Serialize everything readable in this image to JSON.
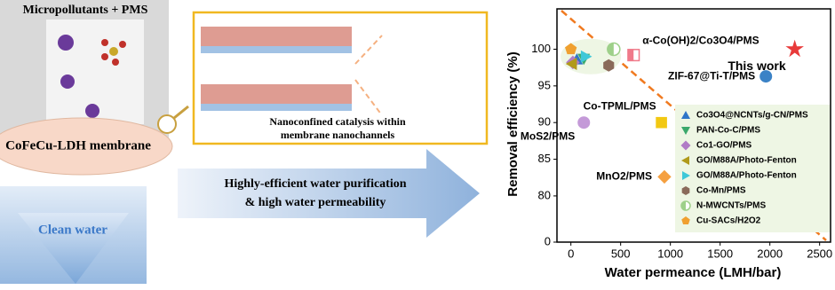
{
  "diagram": {
    "left_top": "Micropollutants + PMS",
    "membrane": "CoFeCu-LDH membrane",
    "clean_water": "Clean water",
    "middle_caption_1": "Nanoconfined catalysis within",
    "middle_caption_2": "membrane nanochannels",
    "arrow_text_1": "Highly-efficient water purification",
    "arrow_text_2": "& high water permeability"
  },
  "chart_data": {
    "type": "scatter",
    "x_label": "Water permeance (LMH/bar)",
    "y_label": "Removal efficiency (%)",
    "xlim": [
      -140,
      2610
    ],
    "xticks": [
      0,
      500,
      1000,
      1500,
      2000,
      2500
    ],
    "ylim": [
      0,
      105.5
    ],
    "y_axis_break": [
      0,
      76
    ],
    "yticks": [
      0,
      80,
      85,
      90,
      95,
      100
    ],
    "legend": "lower right",
    "legend_background": "#eef6e4",
    "series": [
      {
        "name": "Co3O4@NCNTs/g-CN/PMS",
        "color": "#2e75c8",
        "marker": "triangle-up",
        "x": [
          60
        ],
        "values": [
          98.6
        ]
      },
      {
        "name": "PAN-Co-C/PMS",
        "color": "#3aa86b",
        "marker": "triangle-down",
        "x": [
          130
        ],
        "values": [
          98.7
        ]
      },
      {
        "name": "Co1-GO/PMS",
        "color": "#b07cc6",
        "marker": "diamond",
        "x": [
          20
        ],
        "values": [
          98.2
        ]
      },
      {
        "name": "GO/M88A/Photo-Fenton",
        "color": "#b09a1a",
        "marker": "triangle-left",
        "x": [
          10
        ],
        "values": [
          98.0
        ]
      },
      {
        "name": "GO/M88A/Photo-Fenton",
        "color": "#3ec8d8",
        "marker": "triangle-right",
        "x": [
          150
        ],
        "values": [
          99.0
        ]
      },
      {
        "name": "Co-Mn/PMS",
        "color": "#8a6a5a",
        "marker": "hexagon",
        "x": [
          380
        ],
        "values": [
          97.8
        ]
      },
      {
        "name": "N-MWCNTs/PMS",
        "color": "#9ed08a",
        "marker": "half-circle",
        "x": [
          430
        ],
        "values": [
          100
        ]
      },
      {
        "name": "Cu-SACs/H2O2",
        "color": "#f0a030",
        "marker": "pentagon",
        "x": [
          0
        ],
        "values": [
          100
        ]
      }
    ],
    "annotations": [
      {
        "text": "α-Co(OH)2/Co3O4/PMS",
        "color": "#f07a8a",
        "marker": "square-half",
        "x": 630,
        "value": 99.2
      },
      {
        "text": "This work",
        "color": "#e83a3a",
        "marker": "star",
        "x": 2250,
        "value": 100
      },
      {
        "text": "ZIF-67@Ti-T/PMS",
        "color": "#3b82c6",
        "marker": "circle",
        "x": 1960,
        "value": 96.3
      },
      {
        "text": "Co-TPML/PMS",
        "color": "#f2c812",
        "marker": "square",
        "x": 910,
        "value": 90
      },
      {
        "text": "MoS2/PMS",
        "color": "#c49ad8",
        "marker": "circle",
        "x": 130,
        "value": 90
      },
      {
        "text": "MnO2/PMS",
        "color": "#f5a040",
        "marker": "diamond",
        "x": 940,
        "value": 82.6
      }
    ]
  }
}
